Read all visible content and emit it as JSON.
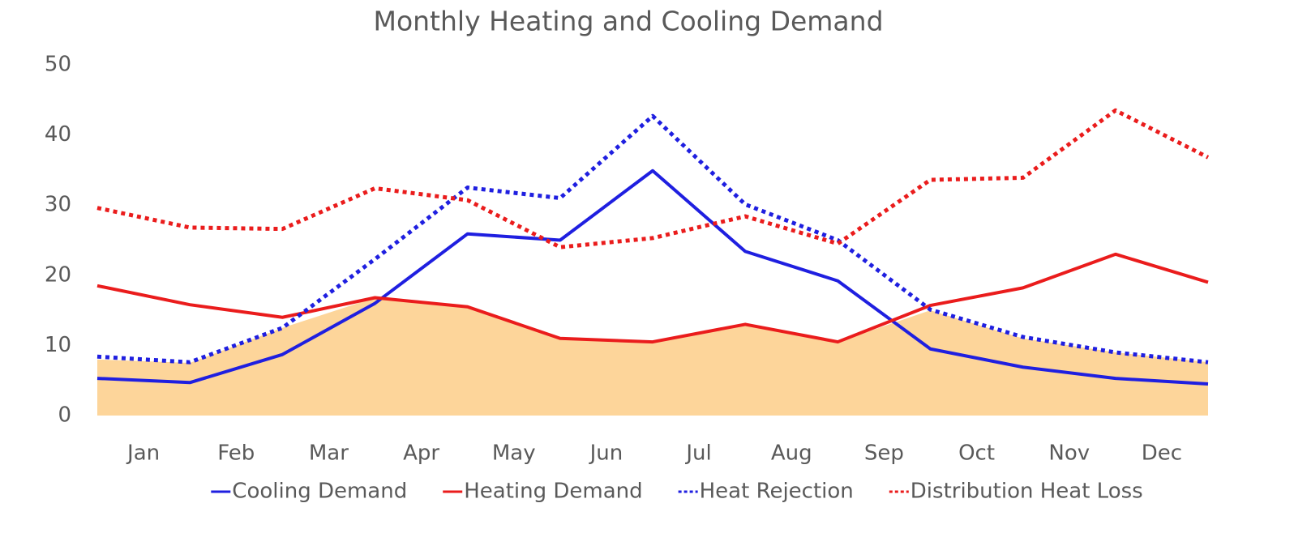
{
  "chart_data": {
    "type": "line",
    "title": "Monthly Heating and Cooling Demand",
    "categories": [
      "Jan",
      "Feb",
      "Mar",
      "Apr",
      "May",
      "Jun",
      "Jul",
      "Aug",
      "Sep",
      "Oct",
      "Nov",
      "Dec",
      null
    ],
    "ylim": [
      0,
      50
    ],
    "yticks": [
      0,
      10,
      20,
      30,
      40,
      50
    ],
    "grid": false,
    "legend": "bottom",
    "area": {
      "color": "#fdd59a",
      "values": [
        8,
        7.5,
        12.5,
        16.8,
        15.5,
        11,
        10.5,
        13,
        10.5,
        15,
        11,
        9,
        7.6
      ]
    },
    "series": [
      {
        "name": "Cooling Demand",
        "color": "#1f1fe0",
        "dash": false,
        "values": [
          5.3,
          4.7,
          8.7,
          16,
          25.9,
          25,
          34.9,
          23.4,
          19.2,
          9.5,
          6.9,
          5.3,
          4.5
        ]
      },
      {
        "name": "Heating Demand",
        "color": "#ea1c1c",
        "dash": false,
        "values": [
          18.5,
          15.8,
          14,
          16.8,
          15.5,
          11,
          10.5,
          13,
          10.5,
          15.7,
          18.2,
          23,
          19
        ]
      },
      {
        "name": "Heat Rejection",
        "color": "#1f1fe0",
        "dash": true,
        "values": [
          8.4,
          7.6,
          12.5,
          22.3,
          32.5,
          31,
          42.7,
          30.1,
          25,
          15.1,
          11.2,
          9,
          7.6
        ]
      },
      {
        "name": "Distribution Heat Loss",
        "color": "#ea1c1c",
        "dash": true,
        "values": [
          29.6,
          26.8,
          26.6,
          32.4,
          30.7,
          24,
          25.3,
          28.4,
          24.5,
          33.6,
          33.9,
          43.5,
          36.8
        ]
      }
    ]
  }
}
